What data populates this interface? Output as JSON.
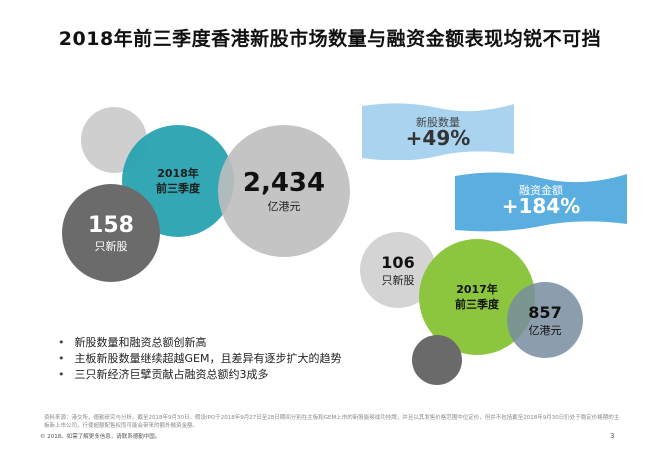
{
  "title": "2018年前三季度香港新股市场数量与融资金额表现均锐不可挡",
  "circles": {
    "ytd2018": "2018年\n前三季度",
    "funds2018": {
      "value": "2,434",
      "unit": "亿港元"
    },
    "ipos2018": {
      "value": "158",
      "unit": "只新股"
    },
    "ipos2017": {
      "value": "106",
      "unit": "只新股"
    },
    "ytd2017": "2017年\n前三季度",
    "funds2017": {
      "value": "857",
      "unit": "亿港元"
    }
  },
  "banners": [
    {
      "label": "新股数量",
      "value": "+49%",
      "color": "#a9d3ee"
    },
    {
      "label": "融资金额",
      "value": "+184%",
      "color": "#5aaee0"
    }
  ],
  "bullets": [
    "新股数量和融资总额创新高",
    "主板新股数量继续超越GEM，且差异有逐步扩大的趋势",
    "三只新经济巨擘贡献占融资总额约3成多"
  ],
  "footer": {
    "source": "资料来源：港交所，德勤研究与分析。截至2018年9月30日。假设IPO于2018年9月27日至28日期间分别在主板和GEM上市的新股能够成功挂牌，并且以其发售价格范围中位定价，但并不包括截至2018年9月30日仍处于稳定价格期的主板新上市公司，行使超额配售权而可能会带来的额外融资金额。",
    "copyright": "© 2018。如需了解更多信息，请联系德勤中国。",
    "page": "3"
  }
}
